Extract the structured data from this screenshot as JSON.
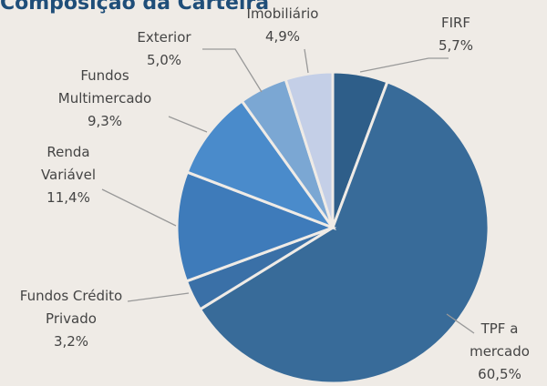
{
  "chart_data": {
    "type": "pie",
    "title": "Composição da Carteira",
    "categories": [
      "FIRF",
      "TPF a\nmercado",
      "Fundos Crédito\nPrivado",
      "Renda\nVariável",
      "Fundos\nMultimercado",
      "Exterior",
      "Imobiliário"
    ],
    "values": [
      5.7,
      60.5,
      3.2,
      11.4,
      9.3,
      5.0,
      4.9
    ],
    "value_labels": [
      "5,7%",
      "60,5%",
      "3,2%",
      "11,4%",
      "9,3%",
      "5,0%",
      "4,9%"
    ],
    "colors": [
      "#2e5e89",
      "#386b99",
      "#3a70a7",
      "#3e7bba",
      "#4a8bcb",
      "#7ba7d3",
      "#c4cfe7"
    ]
  }
}
